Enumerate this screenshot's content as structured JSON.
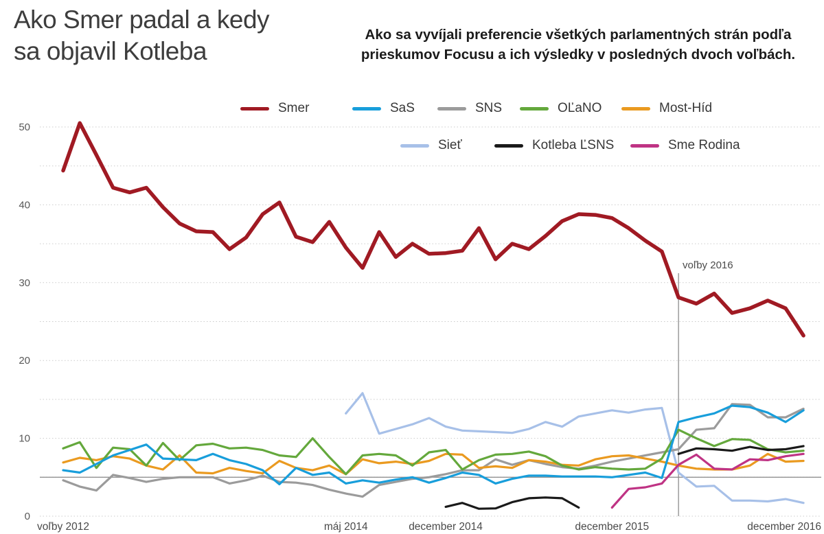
{
  "header": {
    "title_line1": "Ako Smer padal a kedy",
    "title_line2": "sa objavil Kotleba",
    "subtitle": "Ako sa vyvíjali preferencie všetkých parlamentných strán podľa prieskumov Focusu a ich výsledky v posledných dvoch voľbách."
  },
  "chart_data": {
    "type": "line",
    "title": "Ako Smer padal a kedy sa objavil Kotleba",
    "xlabel": "",
    "ylabel": "",
    "ylim": [
      0,
      52
    ],
    "y_ticks": [
      0,
      10,
      20,
      30,
      40,
      50
    ],
    "gridline_step": 5,
    "grid": "dashed horizontal every 5, labels every 10",
    "threshold_line": 5,
    "legend_position": "top, two rows",
    "annotation": {
      "label": "voľby 2016",
      "index": 37
    },
    "x_tick_labels": [
      {
        "label": "voľby 2012",
        "index": 0,
        "anchor": "middle"
      },
      {
        "label": "máj 2014",
        "index": 17,
        "anchor": "middle"
      },
      {
        "label": "december 2014",
        "index": 23,
        "anchor": "middle"
      },
      {
        "label": "december 2015",
        "index": 33,
        "anchor": "middle"
      },
      {
        "label": "december 2016",
        "index": 44,
        "anchor": "end"
      }
    ],
    "series": [
      {
        "name": "Smer",
        "color": "#a01a23",
        "width": 5.5,
        "values": [
          44.4,
          50.5,
          46.4,
          42.2,
          41.6,
          42.2,
          39.7,
          37.6,
          36.6,
          36.5,
          34.3,
          35.8,
          38.8,
          40.3,
          35.9,
          35.2,
          37.8,
          34.5,
          31.9,
          36.5,
          33.3,
          35.0,
          33.7,
          33.8,
          34.1,
          37.0,
          33.0,
          35.0,
          34.3,
          36.0,
          37.9,
          38.8,
          38.7,
          38.3,
          37.0,
          35.4,
          34.0,
          28.1,
          27.3,
          28.6,
          26.1,
          26.7,
          27.7,
          26.7,
          23.2
        ]
      },
      {
        "name": "SaS",
        "color": "#189edb",
        "width": 3.2,
        "values": [
          5.9,
          5.6,
          6.7,
          7.8,
          8.5,
          9.2,
          7.4,
          7.3,
          7.2,
          8.0,
          7.2,
          6.7,
          5.9,
          4.1,
          6.2,
          5.3,
          5.6,
          4.2,
          4.6,
          4.3,
          4.7,
          5.0,
          4.3,
          4.9,
          5.6,
          5.3,
          4.2,
          4.8,
          5.2,
          5.2,
          5.1,
          5.1,
          5.1,
          5.0,
          5.3,
          5.6,
          4.9,
          12.1,
          12.7,
          13.2,
          14.2,
          14.0,
          13.3,
          12.1,
          13.6
        ]
      },
      {
        "name": "SNS",
        "color": "#9b9b9b",
        "width": 3.2,
        "values": [
          4.6,
          3.8,
          3.3,
          5.3,
          4.9,
          4.4,
          4.8,
          5.0,
          5.0,
          5.0,
          4.2,
          4.6,
          5.2,
          4.4,
          4.3,
          4.0,
          3.4,
          2.9,
          2.5,
          4.0,
          4.4,
          4.8,
          5.0,
          5.4,
          5.9,
          5.9,
          7.3,
          6.6,
          7.2,
          6.7,
          6.3,
          6.1,
          6.5,
          7.0,
          7.4,
          7.8,
          8.2,
          8.6,
          11.1,
          11.3,
          14.4,
          14.3,
          12.7,
          12.7,
          13.8
        ]
      },
      {
        "name": "OĽaNO",
        "color": "#64a83c",
        "width": 3.2,
        "values": [
          8.7,
          9.5,
          6.2,
          8.8,
          8.6,
          6.5,
          9.4,
          7.2,
          9.1,
          9.3,
          8.7,
          8.8,
          8.5,
          7.8,
          7.6,
          10.0,
          7.6,
          5.4,
          7.8,
          8.0,
          7.8,
          6.5,
          8.2,
          8.5,
          6.0,
          7.2,
          7.9,
          8.0,
          8.3,
          7.7,
          6.5,
          6.0,
          6.3,
          6.1,
          6.0,
          6.1,
          7.4,
          11.1,
          10.0,
          9.0,
          9.9,
          9.8,
          8.6,
          8.2,
          8.4
        ]
      },
      {
        "name": "Most-Híd",
        "color": "#ea9a20",
        "width": 3.2,
        "values": [
          6.9,
          7.5,
          7.2,
          7.7,
          7.4,
          6.5,
          6.0,
          7.8,
          5.6,
          5.5,
          6.2,
          5.8,
          5.5,
          7.1,
          6.2,
          5.9,
          6.5,
          5.4,
          7.3,
          6.8,
          7.0,
          6.7,
          7.1,
          8.0,
          7.9,
          6.2,
          6.4,
          6.2,
          7.2,
          7.0,
          6.6,
          6.5,
          7.3,
          7.7,
          7.8,
          7.4,
          7.0,
          6.5,
          6.1,
          6.0,
          6.0,
          6.5,
          8.0,
          7.0,
          7.1
        ]
      },
      {
        "name": "Sieť",
        "color": "#a7c0e8",
        "width": 3.2,
        "values": [
          null,
          null,
          null,
          null,
          null,
          null,
          null,
          null,
          null,
          null,
          null,
          null,
          null,
          null,
          null,
          null,
          null,
          13.2,
          15.8,
          10.6,
          11.2,
          11.8,
          12.6,
          11.5,
          11.0,
          10.9,
          10.8,
          10.7,
          11.2,
          12.1,
          11.5,
          12.8,
          13.2,
          13.6,
          13.3,
          13.7,
          13.9,
          5.6,
          3.8,
          3.9,
          2.0,
          2.0,
          1.9,
          2.2,
          1.7
        ]
      },
      {
        "name": "Kotleba ĽSNS",
        "color": "#1a1a1a",
        "width": 3.2,
        "values": [
          null,
          null,
          null,
          null,
          null,
          null,
          null,
          null,
          null,
          null,
          null,
          null,
          null,
          null,
          null,
          null,
          null,
          null,
          null,
          null,
          null,
          null,
          null,
          1.2,
          1.7,
          0.95,
          1.0,
          1.8,
          2.3,
          2.4,
          2.3,
          1.1,
          null,
          null,
          null,
          null,
          null,
          8.0,
          8.7,
          8.6,
          8.4,
          8.9,
          8.5,
          8.6,
          9.0
        ]
      },
      {
        "name": "Sme Rodina",
        "color": "#bf3384",
        "width": 3.2,
        "values": [
          null,
          null,
          null,
          null,
          null,
          null,
          null,
          null,
          null,
          null,
          null,
          null,
          null,
          null,
          null,
          null,
          null,
          null,
          null,
          null,
          null,
          null,
          null,
          null,
          null,
          null,
          null,
          null,
          null,
          null,
          null,
          null,
          null,
          1.1,
          3.5,
          3.7,
          4.2,
          6.6,
          7.9,
          6.1,
          6.0,
          7.3,
          7.2,
          7.7,
          8.0
        ]
      }
    ]
  },
  "legend": {
    "rows": [
      [
        "Smer",
        "SaS",
        "SNS",
        "OĽaNO",
        "Most-Híd"
      ],
      [
        "Sieť",
        "Kotleba ĽSNS",
        "Sme Rodina"
      ]
    ]
  }
}
